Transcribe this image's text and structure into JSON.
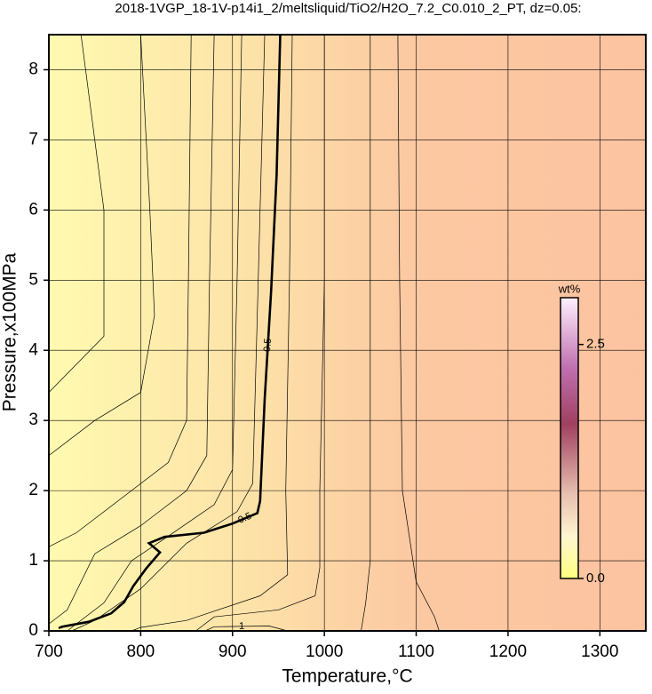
{
  "chart_data": {
    "type": "contour",
    "title": "2018-1VGP_18-1V-p14i1_2/meltsliquid/TiO2/H2O_7.2_C0.010_2_PT, dz=0.05:",
    "xlabel": "Temperature,°C",
    "ylabel": "Pressure,x100MPa",
    "xlim": [
      700,
      1350
    ],
    "ylim": [
      0,
      8.5
    ],
    "xticks": [
      700,
      800,
      900,
      1000,
      1100,
      1200,
      1300
    ],
    "yticks": [
      0,
      1,
      2,
      3,
      4,
      5,
      6,
      7,
      8
    ],
    "grid": true,
    "colorbar": {
      "label": "wt%",
      "lim": [
        0,
        3.0
      ],
      "ticks": [
        {
          "value": 0,
          "label": "0.0"
        },
        {
          "value": 2.5,
          "label": "2.5"
        }
      ]
    },
    "contours": [
      {
        "level": 0.5,
        "x": [
          710.6,
          714.5,
          743.5,
          767.7,
          782,
          792,
          806,
          821,
          809,
          826,
          869,
          900,
          927,
          930,
          935,
          942,
          948,
          952
        ],
        "y": [
          0.04,
          0.06,
          0.13,
          0.25,
          0.41,
          0.64,
          0.89,
          1.12,
          1.25,
          1.34,
          1.4,
          1.53,
          1.68,
          1.85,
          3.31,
          4.84,
          6.5,
          8.5
        ]
      },
      {
        "level": 0.45,
        "x": [
          935,
          928,
          922,
          905,
          850,
          800,
          750,
          725
        ],
        "y": [
          8.5,
          5,
          2.1,
          1.7,
          1.25,
          0.6,
          0.15,
          0
        ]
      },
      {
        "level": 0.4,
        "x": [
          910,
          905,
          900,
          880,
          830,
          790,
          760,
          720
        ],
        "y": [
          8.5,
          5,
          2.3,
          1.8,
          1.35,
          1.0,
          0.4,
          0
        ]
      },
      {
        "level": 0.35,
        "x": [
          880,
          875,
          872,
          850,
          800,
          750,
          720,
          700
        ],
        "y": [
          8.5,
          5,
          2.5,
          2.0,
          1.5,
          1.1,
          0.3,
          0.1
        ]
      },
      {
        "level": 0.3,
        "x": [
          855,
          852,
          850,
          830,
          780,
          730,
          700
        ],
        "y": [
          8.5,
          5,
          3,
          2.4,
          1.9,
          1.4,
          1.2
        ]
      },
      {
        "level": 0.25,
        "x": [
          800,
          810,
          815,
          800,
          750,
          700
        ],
        "y": [
          8.5,
          6,
          4.5,
          3.4,
          3,
          2.5
        ]
      },
      {
        "level": 0.2,
        "x": [
          735,
          760,
          760,
          715,
          700
        ],
        "y": [
          8.5,
          6,
          4.2,
          3.6,
          3.4
        ]
      },
      {
        "level": 0.55,
        "x": [
          965,
          962,
          958,
          960,
          930,
          850,
          800,
          790
        ],
        "y": [
          8.5,
          5,
          2,
          0.8,
          0.5,
          0.15,
          0.05,
          0
        ]
      },
      {
        "level": 0.6,
        "x": [
          1000,
          1000,
          995,
          995,
          990,
          950,
          880,
          860
        ],
        "y": [
          8.5,
          5,
          2,
          0.9,
          0.5,
          0.3,
          0.2,
          0
        ]
      },
      {
        "level": 0.65,
        "x": [
          1050,
          1050,
          1050,
          1050,
          1045,
          1040
        ],
        "y": [
          8.5,
          5,
          2,
          1,
          0.4,
          0
        ]
      },
      {
        "level": 0.7,
        "x": [
          1080,
          1082,
          1085,
          1100,
          1120,
          1125
        ],
        "y": [
          8.5,
          5,
          2,
          0.7,
          0.2,
          0
        ]
      },
      {
        "level": 1,
        "x": [
          870,
          880,
          940,
          960
        ],
        "y": [
          0,
          0.06,
          0.07,
          0
        ]
      }
    ]
  }
}
